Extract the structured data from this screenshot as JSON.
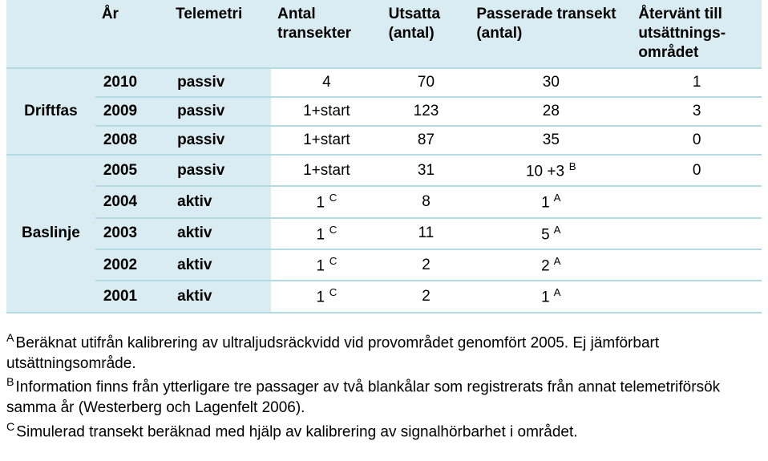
{
  "columns": {
    "c0": "",
    "c1": "År",
    "c2": "Telemetri",
    "c3": "Antal transekter",
    "c4": "Utsatta (antal)",
    "c5": "Passerade transekt (antal)",
    "c6": "Återvänt till utsättnings-\nområdet"
  },
  "groups": [
    {
      "label": "Driftfas",
      "rows": [
        {
          "year": "2010",
          "tele": "passiv",
          "trans": "4",
          "trans_sup": "",
          "utsatta": "70",
          "pass": "30",
          "pass_sup": "",
          "ater": "1"
        },
        {
          "year": "2009",
          "tele": "passiv",
          "trans": "1+start",
          "trans_sup": "",
          "utsatta": "123",
          "pass": "28",
          "pass_sup": "",
          "ater": "3"
        },
        {
          "year": "2008",
          "tele": "passiv",
          "trans": "1+start",
          "trans_sup": "",
          "utsatta": "87",
          "pass": "35",
          "pass_sup": "",
          "ater": "0"
        }
      ]
    },
    {
      "label": "Baslinje",
      "rows": [
        {
          "year": "2005",
          "tele": "passiv",
          "trans": "1+start",
          "trans_sup": "",
          "utsatta": "31",
          "pass": "10 +3",
          "pass_sup": " B",
          "ater": "0"
        },
        {
          "year": "2004",
          "tele": "aktiv",
          "trans": "1",
          "trans_sup": " C",
          "utsatta": "8",
          "pass": "1",
          "pass_sup": " A",
          "ater": ""
        },
        {
          "year": "2003",
          "tele": "aktiv",
          "trans": "1",
          "trans_sup": " C",
          "utsatta": "11",
          "pass": "5",
          "pass_sup": " A",
          "ater": ""
        },
        {
          "year": "2002",
          "tele": "aktiv",
          "trans": "1",
          "trans_sup": " C",
          "utsatta": "2",
          "pass": "2",
          "pass_sup": " A",
          "ater": ""
        },
        {
          "year": "2001",
          "tele": "aktiv",
          "trans": "1",
          "trans_sup": " C",
          "utsatta": "2",
          "pass": "1",
          "pass_sup": " A",
          "ater": ""
        }
      ]
    }
  ],
  "footnotes": {
    "A_sup": "A",
    "A_text": "Beräknat utifrån kalibrering av ultraljudsräckvidd vid provområdet genomfört 2005. Ej jämförbart utsättningsområde.",
    "B_sup": "B",
    "B_text": "Information finns från ytterligare tre passager av två blankålar som registrerats från annat telemetriförsök samma år (Westerberg och Lagenfelt 2006).",
    "C_sup": "C",
    "C_text": "Simulerad transekt beräknad med hjälp av kalibrering av signalhörbarhet i området."
  }
}
